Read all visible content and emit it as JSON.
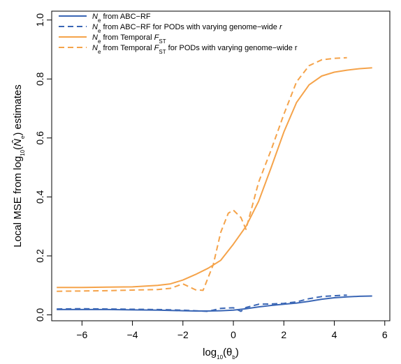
{
  "colors": {
    "abc_rf": "#3a66b5",
    "temporal_fst": "#f5a34a",
    "axis": "#000000"
  },
  "chart_data": {
    "type": "line",
    "title": "",
    "xlabel": {
      "main": "log",
      "sub": "10",
      "arg": "(θ",
      "argsub": "b",
      "close": ")"
    },
    "ylabel": {
      "pre": "Local MSE from log",
      "sub": "10",
      "open": "(",
      "hat": "N̂",
      "hatsub": "e",
      "post": ") estimates"
    },
    "xlim": [
      -7.2,
      6.2
    ],
    "ylim": [
      -0.02,
      1.03
    ],
    "xticks": [
      -6,
      -4,
      -2,
      0,
      2,
      4,
      6
    ],
    "xtick_labels": [
      "−6",
      "−4",
      "−2",
      "0",
      "2",
      "4",
      "6"
    ],
    "yticks": [
      0.0,
      0.2,
      0.4,
      0.6,
      0.8,
      1.0
    ],
    "ytick_labels": [
      "0.0",
      "0.2",
      "0.4",
      "0.6",
      "0.8",
      "1.0"
    ],
    "legend_position": "top-left",
    "series": [
      {
        "name": "N_e from ABC−RF",
        "legend": {
          "italic": "N",
          "sub": "e",
          "rest": " from ABC−RF",
          "subvar": "",
          "tail": ""
        },
        "color": "#3a66b5",
        "dashed": false,
        "x": [
          -7,
          -6,
          -5,
          -4,
          -3,
          -2,
          -1.5,
          -1,
          -0.5,
          0,
          0.5,
          1,
          1.5,
          2,
          2.5,
          3,
          3.5,
          4,
          4.5,
          5,
          5.5
        ],
        "y": [
          0.018,
          0.018,
          0.018,
          0.017,
          0.016,
          0.014,
          0.013,
          0.013,
          0.014,
          0.016,
          0.021,
          0.027,
          0.032,
          0.036,
          0.04,
          0.046,
          0.053,
          0.058,
          0.061,
          0.063,
          0.064
        ]
      },
      {
        "name": "N_e from ABC−RF for PODs with varying genome−wide r",
        "legend": {
          "italic": "N",
          "sub": "e",
          "rest": " from ABC−RF for PODs with varying genome−wide ",
          "subvar": "",
          "tail": "r"
        },
        "color": "#3a66b5",
        "dashed": true,
        "x": [
          -7,
          -6,
          -5,
          -4,
          -3,
          -2,
          -1,
          -0.5,
          0,
          0.3,
          0.5,
          1,
          1.5,
          2,
          2.5,
          3,
          3.5,
          4,
          4.5
        ],
        "y": [
          0.02,
          0.021,
          0.02,
          0.019,
          0.018,
          0.016,
          0.012,
          0.022,
          0.024,
          0.012,
          0.025,
          0.036,
          0.037,
          0.039,
          0.044,
          0.055,
          0.062,
          0.065,
          0.067
        ]
      },
      {
        "name": "N_e from Temporal F_ST",
        "legend": {
          "italic": "N",
          "sub": "e",
          "rest": " from Temporal ",
          "subvar": "F",
          "subvarsub": "ST",
          "tail": ""
        },
        "color": "#f5a34a",
        "dashed": false,
        "x": [
          -7,
          -6,
          -5,
          -4,
          -3,
          -2.5,
          -2,
          -1.5,
          -1,
          -0.5,
          0,
          0.5,
          1,
          1.5,
          2,
          2.5,
          3,
          3.5,
          4,
          4.5,
          5,
          5.5
        ],
        "y": [
          0.093,
          0.093,
          0.094,
          0.095,
          0.1,
          0.105,
          0.118,
          0.137,
          0.158,
          0.185,
          0.24,
          0.3,
          0.385,
          0.5,
          0.62,
          0.72,
          0.78,
          0.81,
          0.823,
          0.83,
          0.835,
          0.838
        ]
      },
      {
        "name": "N_e from Temporal F_ST for PODs with varying genome−wide r",
        "legend": {
          "italic": "N",
          "sub": "e",
          "rest": " from Temporal ",
          "subvar": "F",
          "subvarsub": "ST",
          "tail": " for PODs with varying genome−wide r"
        },
        "color": "#f5a34a",
        "dashed": true,
        "x": [
          -7,
          -6,
          -5,
          -4,
          -3,
          -2.5,
          -2,
          -1.5,
          -1.2,
          -0.8,
          -0.5,
          -0.2,
          0,
          0.3,
          0.5,
          1,
          1.5,
          2,
          2.5,
          3,
          3.5,
          4,
          4.5
        ],
        "y": [
          0.08,
          0.081,
          0.082,
          0.084,
          0.086,
          0.09,
          0.105,
          0.085,
          0.083,
          0.17,
          0.28,
          0.345,
          0.355,
          0.33,
          0.29,
          0.45,
          0.56,
          0.68,
          0.79,
          0.845,
          0.865,
          0.87,
          0.872
        ]
      }
    ]
  }
}
